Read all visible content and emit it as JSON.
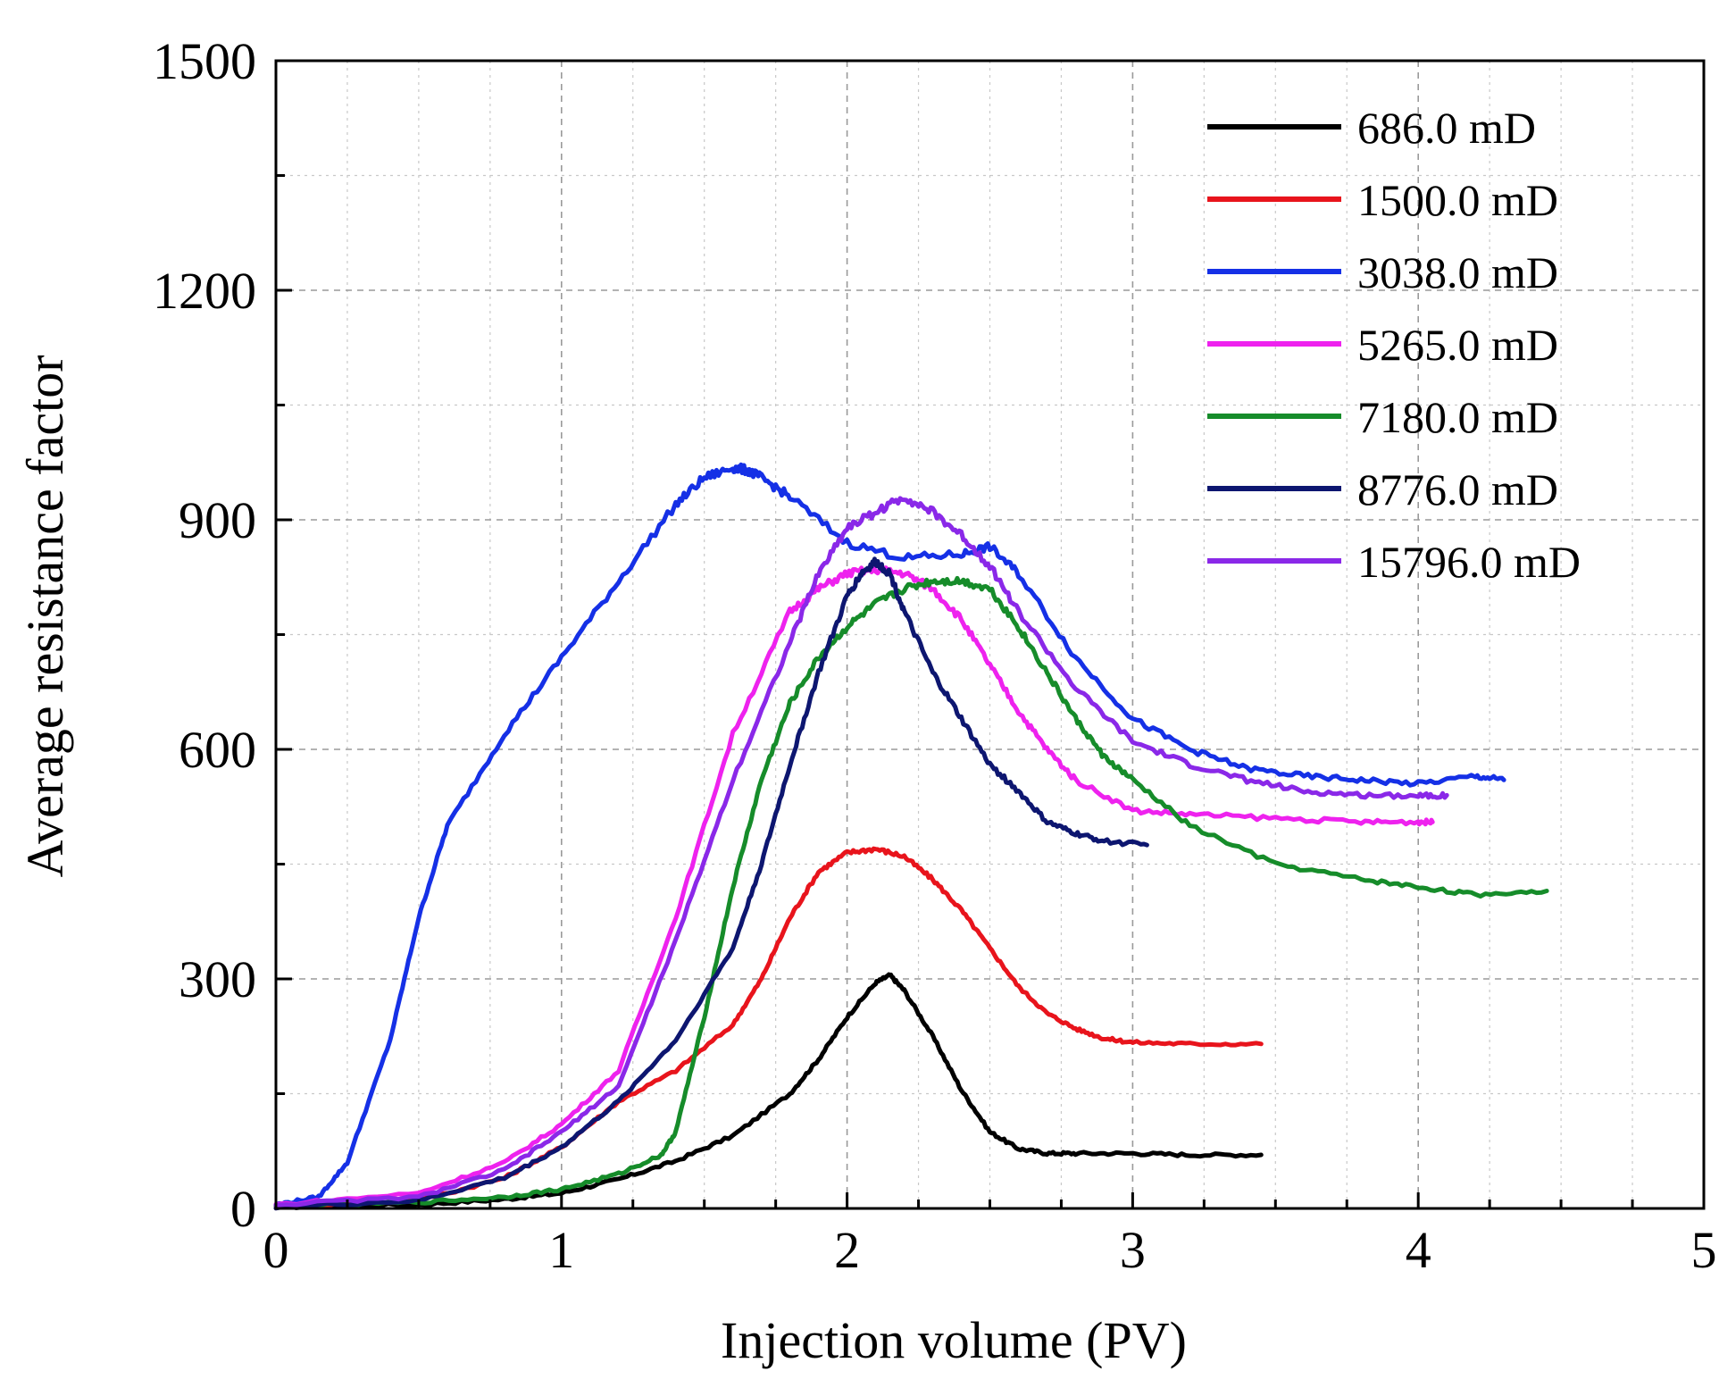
{
  "chart_data": {
    "type": "line",
    "title": "",
    "xlabel": "Injection volume (PV)",
    "ylabel": "Average resistance factor",
    "xlim": [
      0,
      5
    ],
    "ylim": [
      0,
      1500
    ],
    "xticks": [
      "0",
      "1",
      "2",
      "3",
      "4",
      "5"
    ],
    "yticks": [
      "0",
      "300",
      "600",
      "900",
      "1200",
      "1500"
    ],
    "grid": true,
    "legend_position": "top-right",
    "series": [
      {
        "name": "686.0 mD",
        "color": "#000000",
        "x": [
          0,
          0.5,
          0.8,
          1.0,
          1.2,
          1.4,
          1.6,
          1.8,
          1.9,
          2.0,
          2.1,
          2.15,
          2.2,
          2.3,
          2.4,
          2.5,
          2.6,
          2.7,
          2.8,
          3.0,
          3.2,
          3.45
        ],
        "y": [
          2,
          5,
          12,
          20,
          38,
          62,
          95,
          150,
          195,
          250,
          295,
          305,
          285,
          225,
          155,
          100,
          78,
          72,
          72,
          72,
          70,
          70
        ]
      },
      {
        "name": "1500.0 mD",
        "color": "#e8141c",
        "x": [
          0,
          0.5,
          0.8,
          1.0,
          1.2,
          1.4,
          1.6,
          1.7,
          1.8,
          1.9,
          2.0,
          2.1,
          2.2,
          2.3,
          2.4,
          2.5,
          2.6,
          2.7,
          2.8,
          2.9,
          3.0,
          3.2,
          3.45
        ],
        "y": [
          2,
          10,
          40,
          80,
          140,
          180,
          240,
          300,
          380,
          440,
          465,
          470,
          460,
          430,
          390,
          340,
          290,
          255,
          235,
          222,
          217,
          215,
          215
        ]
      },
      {
        "name": "3038.0 mD",
        "color": "#1530e6",
        "x": [
          0,
          0.15,
          0.25,
          0.4,
          0.5,
          0.6,
          0.8,
          1.0,
          1.2,
          1.4,
          1.5,
          1.6,
          1.65,
          1.7,
          1.8,
          2.0,
          2.2,
          2.4,
          2.5,
          2.6,
          2.8,
          3.0,
          3.2,
          3.4,
          3.6,
          3.8,
          4.0,
          4.2,
          4.3
        ],
        "y": [
          5,
          15,
          60,
          220,
          380,
          500,
          620,
          720,
          820,
          920,
          955,
          968,
          965,
          955,
          930,
          870,
          850,
          855,
          865,
          830,
          720,
          640,
          600,
          575,
          565,
          560,
          555,
          565,
          560
        ]
      },
      {
        "name": "5265.0 mD",
        "color": "#ee22ee",
        "x": [
          0,
          0.5,
          0.8,
          1.0,
          1.2,
          1.4,
          1.6,
          1.8,
          1.9,
          2.0,
          2.1,
          2.2,
          2.3,
          2.4,
          2.5,
          2.6,
          2.7,
          2.8,
          3.0,
          3.2,
          3.5,
          3.8,
          4.0,
          4.05
        ],
        "y": [
          5,
          20,
          60,
          110,
          180,
          380,
          620,
          780,
          810,
          830,
          835,
          830,
          810,
          770,
          710,
          650,
          600,
          560,
          520,
          515,
          510,
          505,
          505,
          505
        ]
      },
      {
        "name": "7180.0 mD",
        "color": "#168c2a",
        "x": [
          0,
          0.5,
          0.8,
          1.0,
          1.2,
          1.35,
          1.4,
          1.5,
          1.6,
          1.7,
          1.8,
          1.9,
          2.0,
          2.1,
          2.2,
          2.3,
          2.4,
          2.5,
          2.6,
          2.7,
          2.8,
          2.9,
          3.0,
          3.2,
          3.5,
          3.8,
          4.0,
          4.2,
          4.45
        ],
        "y": [
          2,
          8,
          15,
          25,
          45,
          70,
          100,
          250,
          420,
          560,
          660,
          720,
          760,
          790,
          810,
          820,
          820,
          810,
          760,
          700,
          640,
          590,
          560,
          500,
          450,
          430,
          420,
          410,
          415
        ]
      },
      {
        "name": "8776.0 mD",
        "color": "#0d1670",
        "x": [
          0,
          0.5,
          0.8,
          1.0,
          1.2,
          1.4,
          1.6,
          1.7,
          1.8,
          1.9,
          2.0,
          2.05,
          2.1,
          2.15,
          2.2,
          2.3,
          2.4,
          2.5,
          2.6,
          2.7,
          2.8,
          2.9,
          3.05
        ],
        "y": [
          2,
          10,
          40,
          80,
          140,
          220,
          340,
          450,
          580,
          700,
          800,
          830,
          845,
          830,
          780,
          700,
          640,
          580,
          545,
          505,
          490,
          480,
          475
        ]
      },
      {
        "name": "15796.0 mD",
        "color": "#8a28e8",
        "x": [
          0,
          0.5,
          0.8,
          1.0,
          1.2,
          1.4,
          1.6,
          1.8,
          1.9,
          2.0,
          2.1,
          2.2,
          2.3,
          2.4,
          2.5,
          2.6,
          2.8,
          3.0,
          3.2,
          3.4,
          3.6,
          3.8,
          4.0,
          4.1
        ],
        "y": [
          5,
          15,
          50,
          100,
          160,
          350,
          560,
          740,
          830,
          890,
          910,
          930,
          910,
          880,
          840,
          780,
          680,
          610,
          580,
          560,
          545,
          540,
          540,
          540
        ]
      }
    ]
  }
}
